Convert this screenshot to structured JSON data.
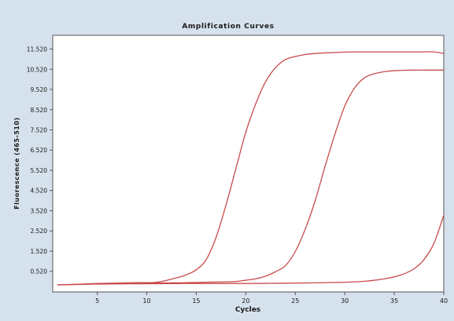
{
  "chart_data": {
    "type": "line",
    "title": "Amplification Curves",
    "xlabel": "Cycles",
    "ylabel": "Fluorescence (465-510)",
    "xlim": [
      0.5,
      40
    ],
    "ylim": [
      -500,
      12200
    ],
    "x_ticks": [
      5,
      10,
      15,
      20,
      25,
      30,
      35,
      40
    ],
    "x_tick_labels": [
      "5",
      "10",
      "15",
      "20",
      "25",
      "30",
      "35",
      "40"
    ],
    "y_ticks": [
      520,
      1520,
      2520,
      3520,
      4520,
      5520,
      6520,
      7520,
      8520,
      9520,
      10520,
      11520
    ],
    "y_tick_labels": [
      "0.520",
      "1.520",
      "2.520",
      "3.520",
      "4.520",
      "5.520",
      "6.520",
      "7.520",
      "8.520",
      "9.520",
      "10.520",
      "11.520"
    ],
    "grid": false,
    "legend": "none",
    "line_color": "#c84b4b",
    "x": [
      1,
      3,
      5,
      7,
      9,
      11,
      13,
      14,
      15,
      16,
      17,
      18,
      19,
      20,
      21,
      22,
      23,
      24,
      25,
      26,
      27,
      28,
      29,
      30,
      31,
      32,
      33,
      34,
      35,
      36,
      37,
      38,
      39,
      40
    ],
    "series": [
      {
        "values": [
          -150,
          -120,
          -80,
          -60,
          -40,
          -20,
          200,
          350,
          600,
          1100,
          2200,
          3800,
          5600,
          7400,
          8800,
          9900,
          10600,
          11000,
          11150,
          11250,
          11300,
          11330,
          11350,
          11370,
          11380,
          11380,
          11380,
          11380,
          11380,
          11380,
          11380,
          11380,
          11380,
          11300
        ]
      },
      {
        "values": [
          -150,
          -120,
          -100,
          -80,
          -70,
          -60,
          -50,
          -40,
          -30,
          -20,
          -10,
          0,
          20,
          80,
          150,
          280,
          500,
          800,
          1500,
          2600,
          4000,
          5700,
          7300,
          8700,
          9600,
          10100,
          10300,
          10400,
          10450,
          10470,
          10480,
          10480,
          10480,
          10480
        ]
      },
      {
        "values": [
          -150,
          -130,
          -110,
          -100,
          -95,
          -90,
          -85,
          -80,
          -80,
          -80,
          -80,
          -80,
          -80,
          -80,
          -80,
          -75,
          -70,
          -65,
          -60,
          -55,
          -50,
          -40,
          -30,
          -20,
          0,
          30,
          80,
          150,
          250,
          400,
          650,
          1100,
          1900,
          3300
        ]
      }
    ]
  }
}
